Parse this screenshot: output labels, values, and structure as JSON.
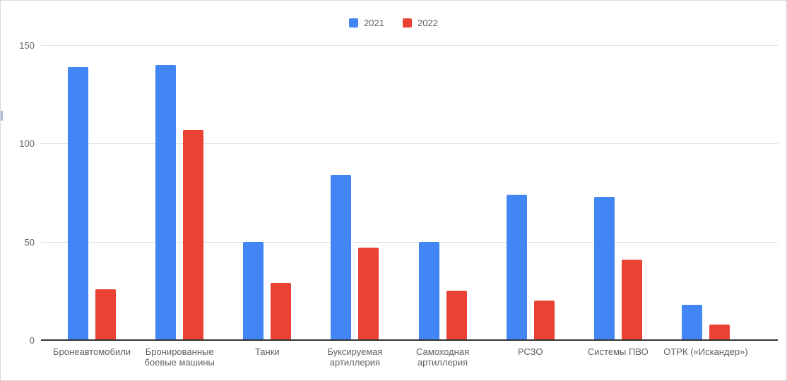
{
  "chart_data": {
    "type": "bar",
    "title": "",
    "xlabel": "",
    "ylabel": "",
    "categories": [
      "Бронеавтомобили",
      "Бронированные боевые машины",
      "Танки",
      "Буксируемая артиллерия",
      "Самоходная артиллерия",
      "РСЗО",
      "Системы ПВО",
      "ОТРК («Искандер»)"
    ],
    "series": [
      {
        "name": "2021",
        "color": "#4285F4",
        "values": [
          139,
          140,
          50,
          84,
          50,
          74,
          73,
          18
        ]
      },
      {
        "name": "2022",
        "color": "#EA4335",
        "values": [
          26,
          107,
          29,
          47,
          25,
          20,
          41,
          8
        ]
      }
    ],
    "ylim": [
      0,
      150
    ],
    "yticks": [
      0,
      50,
      100,
      150
    ],
    "grid": true,
    "legend_position": "top-center"
  }
}
